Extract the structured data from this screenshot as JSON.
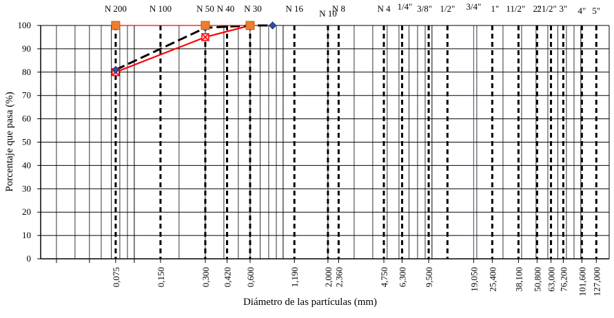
{
  "chart_data": {
    "type": "line",
    "title": "",
    "xlabel": "Diámetro de las partículas (mm)",
    "ylabel": "Porcentaje que pasa (%)",
    "x_scale": "log",
    "ylim": [
      0,
      100
    ],
    "yticks": [
      "0",
      "10",
      "20",
      "30",
      "40",
      "50",
      "60",
      "70",
      "80",
      "90",
      "100"
    ],
    "x_tick_labels": [
      {
        "value": 0.075,
        "label": "0,075"
      },
      {
        "value": 0.15,
        "label": "0,150"
      },
      {
        "value": 0.3,
        "label": "0,300"
      },
      {
        "value": 0.42,
        "label": "0,420"
      },
      {
        "value": 0.6,
        "label": "0,600"
      },
      {
        "value": 1.19,
        "label": "1,190"
      },
      {
        "value": 2.0,
        "label": "2,000"
      },
      {
        "value": 2.36,
        "label": "2,360"
      },
      {
        "value": 4.75,
        "label": "4,750"
      },
      {
        "value": 6.3,
        "label": "6,300"
      },
      {
        "value": 9.5,
        "label": "9,500"
      },
      {
        "value": 19.05,
        "label": "19,050"
      },
      {
        "value": 25.4,
        "label": "25,400"
      },
      {
        "value": 38.1,
        "label": "38,100"
      },
      {
        "value": 50.8,
        "label": "50,800"
      },
      {
        "value": 63.0,
        "label": "63,000"
      },
      {
        "value": 76.2,
        "label": "76,200"
      },
      {
        "value": 101.6,
        "label": "101,600"
      },
      {
        "value": 127.0,
        "label": "127,000"
      }
    ],
    "sieves": [
      {
        "label": "N 200",
        "value": 0.075
      },
      {
        "label": "N 100",
        "value": 0.15
      },
      {
        "label": "N 50",
        "value": 0.3
      },
      {
        "label": "N 40",
        "value": 0.42
      },
      {
        "label": "N 30",
        "value": 0.6
      },
      {
        "label": "N 16",
        "value": 1.19
      },
      {
        "label": "N 10",
        "value": 2.0
      },
      {
        "label": "N 8",
        "value": 2.36
      },
      {
        "label": "N 4",
        "value": 4.75
      },
      {
        "label": "1/4\"",
        "value": 6.3
      },
      {
        "label": "3/8\"",
        "value": 9.5
      },
      {
        "label": "1/2\"",
        "value": 12.7
      },
      {
        "label": "3/4\"",
        "value": 19.05
      },
      {
        "label": "1\"",
        "value": 25.4
      },
      {
        "label": "11/2\"",
        "value": 38.1
      },
      {
        "label": "2\"",
        "value": 50.8
      },
      {
        "label": "21/2\"",
        "value": 63.0
      },
      {
        "label": "3\"",
        "value": 76.2
      },
      {
        "label": "4\"",
        "value": 101.6
      },
      {
        "label": "5\"",
        "value": 127.0
      }
    ],
    "series": [
      {
        "color": "#ff0000",
        "style": "solid",
        "marker": "square-x",
        "points": [
          [
            0.075,
            80
          ],
          [
            0.3,
            95
          ],
          [
            0.6,
            100
          ]
        ]
      },
      {
        "color": "#000000",
        "style": "dashed",
        "marker": "diamond",
        "points": [
          [
            0.075,
            81
          ],
          [
            0.3,
            99
          ],
          [
            0.6,
            100
          ],
          [
            0.85,
            100
          ]
        ]
      },
      {
        "color": "#ff0000",
        "style": "solid",
        "marker": "orange-square",
        "points": [
          [
            0.075,
            100
          ],
          [
            0.3,
            100
          ],
          [
            0.6,
            100
          ]
        ]
      }
    ]
  }
}
